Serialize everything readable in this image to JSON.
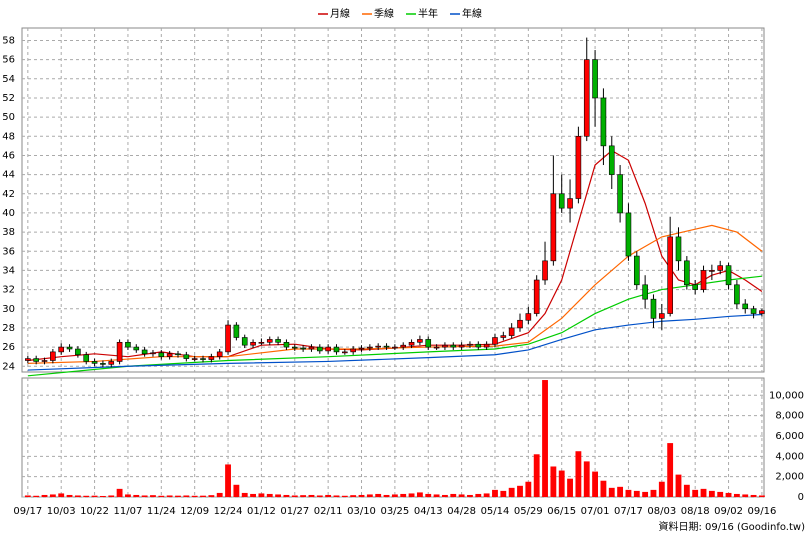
{
  "chart_data": [
    {
      "type": "candlestick",
      "legend": "top",
      "grid": true,
      "up_color": "#ff0000",
      "down_color": "#00b000",
      "x": [
        0,
        1,
        2,
        3,
        4,
        5,
        6,
        7,
        8,
        9,
        10,
        11,
        12,
        13,
        14,
        15,
        16,
        17,
        18,
        19,
        20,
        21,
        22,
        23,
        24,
        25,
        26,
        27,
        28,
        29,
        30,
        31,
        32,
        33,
        34,
        35,
        36,
        37,
        38,
        39,
        40,
        41,
        42,
        43,
        44,
        45,
        46,
        47,
        48,
        49,
        50,
        51,
        52,
        53,
        54,
        55,
        56,
        57,
        58,
        59,
        60,
        61,
        62,
        63,
        64,
        65,
        66,
        67,
        68,
        69,
        70,
        71,
        72,
        73,
        74,
        75,
        76,
        77,
        78,
        79,
        80,
        81,
        82,
        83,
        84,
        85,
        86,
        87,
        88
      ],
      "open": [
        24.6,
        24.8,
        24.5,
        24.6,
        25.5,
        26.0,
        25.8,
        25.2,
        24.5,
        24.3,
        24.2,
        24.5,
        26.5,
        26.0,
        25.7,
        25.3,
        25.4,
        25.0,
        25.3,
        25.2,
        24.8,
        24.8,
        24.7,
        25.0,
        25.5,
        28.3,
        27.0,
        26.2,
        26.5,
        26.5,
        26.8,
        26.5,
        26.0,
        25.9,
        25.8,
        26.0,
        25.6,
        26.0,
        25.5,
        25.5,
        25.8,
        25.9,
        26.0,
        26.1,
        26.0,
        26.0,
        26.2,
        26.5,
        26.8,
        26.0,
        26.0,
        26.2,
        26.0,
        26.2,
        26.3,
        26.0,
        26.3,
        27.0,
        27.2,
        28.0,
        28.8,
        29.5,
        33.0,
        35.0,
        42.0,
        40.5,
        41.5,
        48.0,
        56.0,
        52.0,
        47.0,
        44.0,
        40.0,
        35.5,
        32.5,
        31.0,
        29.0,
        29.5,
        37.5,
        35.0,
        32.5,
        32.0,
        34.0,
        34.0,
        34.5,
        32.5,
        30.5,
        30.0,
        29.5
      ],
      "high": [
        25.1,
        25.1,
        24.9,
        25.8,
        26.4,
        26.3,
        26.1,
        25.5,
        24.8,
        24.6,
        24.8,
        26.8,
        26.8,
        26.3,
        26.0,
        25.7,
        25.7,
        25.6,
        25.6,
        25.5,
        25.1,
        25.1,
        25.3,
        25.8,
        28.8,
        28.6,
        27.3,
        26.8,
        26.9,
        27.1,
        27.1,
        26.8,
        26.3,
        26.2,
        26.3,
        26.3,
        26.3,
        26.3,
        25.8,
        26.1,
        26.2,
        26.3,
        26.4,
        26.4,
        26.3,
        26.5,
        26.8,
        27.2,
        27.1,
        26.3,
        26.5,
        26.5,
        26.5,
        26.6,
        26.6,
        26.6,
        27.4,
        27.6,
        28.5,
        29.5,
        30.2,
        33.5,
        37.0,
        46.0,
        44.0,
        43.5,
        49.0,
        58.3,
        57.0,
        53.0,
        48.0,
        45.0,
        41.0,
        36.0,
        33.5,
        31.5,
        30.5,
        39.6,
        38.5,
        35.5,
        33.0,
        34.5,
        34.6,
        35.0,
        34.8,
        33.0,
        31.0,
        30.3,
        30.0
      ],
      "low": [
        24.3,
        24.2,
        24.2,
        24.3,
        25.2,
        25.5,
        24.9,
        24.2,
        24.0,
        23.9,
        23.9,
        24.2,
        25.7,
        25.4,
        25.0,
        25.0,
        24.7,
        24.7,
        24.9,
        24.5,
        24.5,
        24.4,
        24.4,
        24.7,
        25.2,
        26.7,
        25.9,
        25.9,
        26.2,
        26.2,
        26.2,
        25.7,
        25.6,
        25.5,
        25.5,
        25.3,
        25.3,
        25.2,
        25.2,
        25.2,
        25.5,
        25.6,
        25.7,
        25.7,
        25.7,
        25.7,
        25.9,
        26.2,
        25.7,
        25.7,
        25.7,
        25.7,
        25.7,
        25.9,
        25.7,
        25.7,
        26.0,
        26.7,
        26.9,
        27.6,
        28.4,
        29.2,
        32.5,
        34.5,
        40.0,
        39.0,
        41.0,
        47.5,
        49.0,
        45.0,
        42.5,
        39.0,
        35.0,
        32.0,
        30.0,
        28.0,
        27.8,
        29.2,
        34.0,
        32.0,
        31.5,
        31.7,
        33.0,
        33.6,
        32.0,
        30.0,
        29.5,
        29.0,
        29.2
      ],
      "close": [
        24.8,
        24.5,
        24.6,
        25.5,
        26.0,
        25.8,
        25.2,
        24.5,
        24.3,
        24.2,
        24.5,
        26.5,
        26.0,
        25.7,
        25.3,
        25.4,
        25.0,
        25.3,
        25.2,
        24.8,
        24.8,
        24.7,
        25.0,
        25.5,
        28.3,
        27.0,
        26.2,
        26.5,
        26.5,
        26.8,
        26.5,
        26.0,
        25.9,
        25.8,
        26.0,
        25.6,
        26.0,
        25.5,
        25.5,
        25.8,
        25.9,
        26.0,
        26.1,
        26.0,
        26.0,
        26.2,
        26.5,
        26.8,
        26.0,
        26.0,
        26.2,
        26.0,
        26.2,
        26.3,
        26.0,
        26.3,
        27.0,
        27.2,
        28.0,
        28.8,
        29.5,
        33.0,
        35.0,
        42.0,
        40.5,
        41.5,
        48.0,
        56.0,
        52.0,
        47.0,
        44.0,
        40.0,
        35.5,
        32.5,
        31.0,
        29.0,
        29.5,
        37.5,
        35.0,
        32.5,
        32.0,
        34.0,
        34.0,
        34.5,
        32.5,
        30.5,
        30.0,
        29.5,
        29.8
      ],
      "series": [
        {
          "name": "月線",
          "color": "#cc0000",
          "x": [
            0,
            4,
            8,
            12,
            16,
            20,
            24,
            28,
            32,
            36,
            40,
            44,
            48,
            52,
            56,
            60,
            62,
            64,
            66,
            68,
            70,
            72,
            74,
            76,
            78,
            80,
            82,
            84,
            86,
            88
          ],
          "values": [
            24.6,
            25.0,
            25.3,
            25.0,
            25.5,
            25.0,
            25.0,
            26.2,
            26.3,
            25.8,
            25.7,
            25.9,
            26.2,
            26.2,
            26.3,
            27.5,
            29.5,
            33.0,
            39.0,
            45.0,
            46.5,
            45.5,
            41.0,
            35.5,
            33.0,
            32.5,
            33.5,
            34.0,
            33.0,
            31.8
          ]
        },
        {
          "name": "季線",
          "color": "#ff6600",
          "x": [
            0,
            8,
            16,
            24,
            32,
            40,
            48,
            56,
            60,
            64,
            68,
            72,
            76,
            80,
            82,
            85,
            88
          ],
          "values": [
            24.3,
            24.5,
            25.0,
            25.0,
            25.8,
            25.8,
            26.0,
            26.1,
            26.5,
            29.0,
            32.5,
            35.5,
            37.5,
            38.3,
            38.7,
            38.0,
            36.0
          ]
        },
        {
          "name": "半年",
          "color": "#00cc00",
          "x": [
            0,
            12,
            24,
            36,
            48,
            56,
            60,
            64,
            68,
            72,
            76,
            80,
            84,
            88
          ],
          "values": [
            23.0,
            24.0,
            24.6,
            25.0,
            25.5,
            25.8,
            26.3,
            27.5,
            29.5,
            31.0,
            32.0,
            32.5,
            33.0,
            33.4
          ]
        },
        {
          "name": "年線",
          "color": "#0050c8",
          "x": [
            0,
            12,
            24,
            36,
            48,
            56,
            60,
            64,
            68,
            72,
            76,
            80,
            84,
            88
          ],
          "values": [
            23.6,
            24.0,
            24.3,
            24.5,
            24.9,
            25.2,
            25.7,
            26.8,
            27.8,
            28.3,
            28.7,
            28.9,
            29.2,
            29.4
          ]
        }
      ],
      "xlim": [
        -0.7,
        88.25
      ],
      "ylim": [
        23.4,
        59.3
      ],
      "yticks": [
        24,
        26,
        28,
        30,
        32,
        34,
        36,
        38,
        40,
        42,
        44,
        46,
        48,
        50,
        52,
        54,
        56,
        58
      ]
    },
    {
      "type": "bar",
      "color": "#ff0000",
      "grid": true,
      "footer": "資料日期: 09/16  (Goodinfo.tw)",
      "x": [
        0,
        1,
        2,
        3,
        4,
        5,
        6,
        7,
        8,
        9,
        10,
        11,
        12,
        13,
        14,
        15,
        16,
        17,
        18,
        19,
        20,
        21,
        22,
        23,
        24,
        25,
        26,
        27,
        28,
        29,
        30,
        31,
        32,
        33,
        34,
        35,
        36,
        37,
        38,
        39,
        40,
        41,
        42,
        43,
        44,
        45,
        46,
        47,
        48,
        49,
        50,
        51,
        52,
        53,
        54,
        55,
        56,
        57,
        58,
        59,
        60,
        61,
        62,
        63,
        64,
        65,
        66,
        67,
        68,
        69,
        70,
        71,
        72,
        73,
        74,
        75,
        76,
        77,
        78,
        79,
        80,
        81,
        82,
        83,
        84,
        85,
        86,
        87,
        88
      ],
      "values": [
        150,
        120,
        200,
        250,
        350,
        200,
        150,
        120,
        130,
        100,
        150,
        800,
        250,
        200,
        150,
        180,
        120,
        150,
        130,
        150,
        120,
        130,
        180,
        400,
        3200,
        1200,
        400,
        300,
        350,
        300,
        250,
        200,
        150,
        180,
        200,
        150,
        200,
        150,
        120,
        180,
        200,
        250,
        300,
        200,
        250,
        300,
        350,
        450,
        300,
        250,
        200,
        300,
        250,
        200,
        300,
        350,
        700,
        600,
        900,
        1100,
        1500,
        4200,
        11500,
        3000,
        2600,
        1800,
        4500,
        3500,
        2500,
        1600,
        900,
        1000,
        700,
        600,
        500,
        700,
        1500,
        5300,
        2200,
        1200,
        700,
        800,
        600,
        500,
        400,
        300,
        250,
        200,
        150
      ],
      "xlim": [
        -0.7,
        88.25
      ],
      "xticks": [
        {
          "value": 0,
          "label": "09/17"
        },
        {
          "value": 4,
          "label": "10/03"
        },
        {
          "value": 8,
          "label": "10/22"
        },
        {
          "value": 12,
          "label": "11/07"
        },
        {
          "value": 16,
          "label": "11/24"
        },
        {
          "value": 20,
          "label": "12/09"
        },
        {
          "value": 24,
          "label": "12/24"
        },
        {
          "value": 28,
          "label": "01/12"
        },
        {
          "value": 32,
          "label": "01/27"
        },
        {
          "value": 36,
          "label": "02/11"
        },
        {
          "value": 40,
          "label": "03/10"
        },
        {
          "value": 44,
          "label": "03/25"
        },
        {
          "value": 48,
          "label": "04/13"
        },
        {
          "value": 52,
          "label": "04/28"
        },
        {
          "value": 56,
          "label": "05/14"
        },
        {
          "value": 60,
          "label": "05/29"
        },
        {
          "value": 64,
          "label": "06/15"
        },
        {
          "value": 68,
          "label": "07/01"
        },
        {
          "value": 72,
          "label": "07/17"
        },
        {
          "value": 76,
          "label": "08/03"
        },
        {
          "value": 80,
          "label": "08/18"
        },
        {
          "value": 84,
          "label": "09/02"
        },
        {
          "value": 88,
          "label": "09/16"
        }
      ],
      "ylim": [
        0,
        11700
      ],
      "yticks": [
        0,
        {
          "value": 2000,
          "label": "2,000"
        },
        {
          "value": 4000,
          "label": "4,000"
        },
        {
          "value": 6000,
          "label": "6,000"
        },
        {
          "value": 8000,
          "label": "8,000"
        },
        {
          "value": 10000,
          "label": "10,000"
        }
      ]
    }
  ]
}
